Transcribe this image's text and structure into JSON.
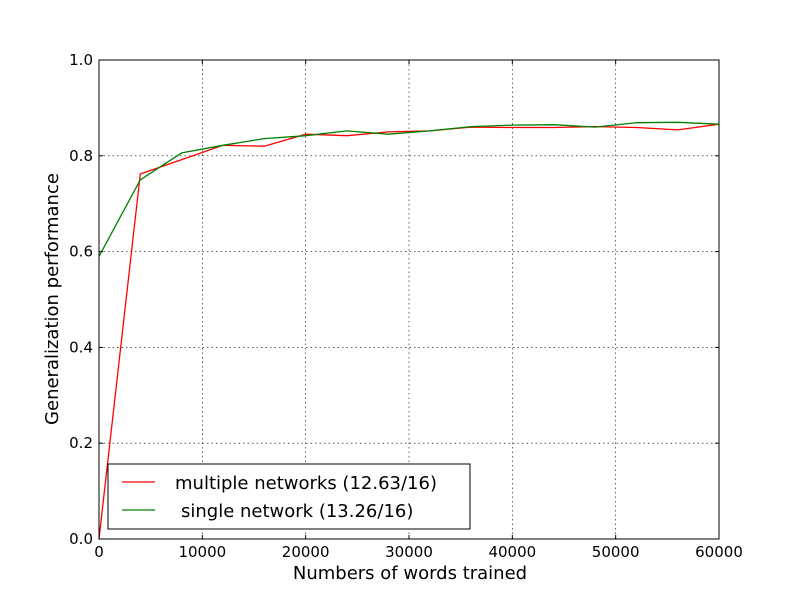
{
  "chart_data": {
    "type": "line",
    "title": "",
    "xlabel": "Numbers of words trained",
    "ylabel": "Generalization performance",
    "xlim": [
      0,
      60000
    ],
    "ylim": [
      0.0,
      1.0
    ],
    "xticks": [
      0,
      10000,
      20000,
      30000,
      40000,
      50000,
      60000
    ],
    "xtick_labels": [
      "0",
      "10000",
      "20000",
      "30000",
      "40000",
      "50000",
      "60000"
    ],
    "yticks": [
      0.0,
      0.2,
      0.4,
      0.6,
      0.8,
      1.0
    ],
    "ytick_labels": [
      "0.0",
      "0.2",
      "0.4",
      "0.6",
      "0.8",
      "1.0"
    ],
    "grid": true,
    "legend_position": "lower-left",
    "series": [
      {
        "name": "multiple networks (12.63/16)",
        "color": "#ff0000",
        "x": [
          0,
          4000,
          8000,
          12000,
          16000,
          20000,
          24000,
          28000,
          32000,
          36000,
          40000,
          44000,
          48000,
          52000,
          56000,
          60000
        ],
        "y": [
          0.0,
          0.762,
          0.792,
          0.822,
          0.82,
          0.845,
          0.842,
          0.85,
          0.852,
          0.86,
          0.859,
          0.859,
          0.861,
          0.859,
          0.854,
          0.866
        ]
      },
      {
        "name": "single network (13.26/16)",
        "color": "#008000",
        "x": [
          0,
          4000,
          8000,
          12000,
          16000,
          20000,
          24000,
          28000,
          32000,
          36000,
          40000,
          44000,
          48000,
          52000,
          56000,
          60000
        ],
        "y": [
          0.59,
          0.75,
          0.806,
          0.822,
          0.836,
          0.842,
          0.852,
          0.845,
          0.852,
          0.861,
          0.864,
          0.865,
          0.86,
          0.869,
          0.87,
          0.866
        ]
      }
    ]
  }
}
